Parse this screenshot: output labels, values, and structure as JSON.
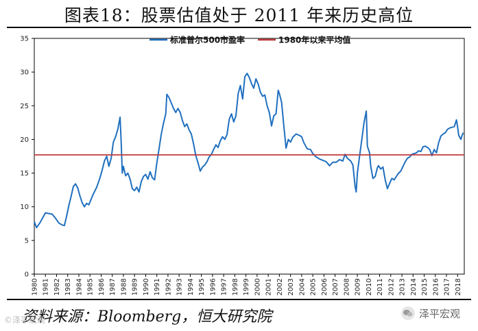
{
  "title": "图表18：股票估值处于 2011 年来历史高位",
  "source": "资料来源：Bloomberg，恒大研究院",
  "watermark": "泽平宏观",
  "watermark_left": "©泽平宏观",
  "colors": {
    "pe": "#1f6fbf",
    "avg": "#c0393b"
  },
  "chart_data": {
    "type": "line",
    "title": "图表18：股票估值处于 2011 年来历史高位",
    "xlabel": "",
    "ylabel": "",
    "xlim": [
      1980,
      2018.6
    ],
    "ylim": [
      0,
      35
    ],
    "yticks": [
      0,
      5,
      10,
      15,
      20,
      25,
      30,
      35
    ],
    "xticks": [
      "1980",
      "1981",
      "1982",
      "1983",
      "1984",
      "1985",
      "1986",
      "1987",
      "1988",
      "1989",
      "1990",
      "1991",
      "1992",
      "1993",
      "1994",
      "1995",
      "1996",
      "1997",
      "1998",
      "1999",
      "2000",
      "2001",
      "2002",
      "2003",
      "2004",
      "2005",
      "2006",
      "2007",
      "2008",
      "2009",
      "2010",
      "2011",
      "2012",
      "2013",
      "2014",
      "2015",
      "2016",
      "2017",
      "2018"
    ],
    "legend_position": "top-right",
    "grid": false,
    "series": [
      {
        "name": "标准普尔500市盈率",
        "color": "#1f6fbf",
        "points": [
          [
            1980.0,
            7.8
          ],
          [
            1980.2,
            6.9
          ],
          [
            1980.5,
            7.6
          ],
          [
            1980.8,
            8.5
          ],
          [
            1981.0,
            9.1
          ],
          [
            1981.3,
            9.0
          ],
          [
            1981.6,
            8.9
          ],
          [
            1981.9,
            8.3
          ],
          [
            1982.2,
            7.6
          ],
          [
            1982.5,
            7.3
          ],
          [
            1982.7,
            7.2
          ],
          [
            1982.9,
            8.6
          ],
          [
            1983.1,
            10.2
          ],
          [
            1983.3,
            11.5
          ],
          [
            1983.5,
            13.0
          ],
          [
            1983.7,
            13.4
          ],
          [
            1983.9,
            12.8
          ],
          [
            1984.1,
            11.6
          ],
          [
            1984.3,
            10.6
          ],
          [
            1984.5,
            10.0
          ],
          [
            1984.7,
            10.5
          ],
          [
            1984.9,
            10.3
          ],
          [
            1985.1,
            11.1
          ],
          [
            1985.3,
            11.9
          ],
          [
            1985.6,
            12.9
          ],
          [
            1985.9,
            14.3
          ],
          [
            1986.1,
            15.5
          ],
          [
            1986.3,
            16.8
          ],
          [
            1986.5,
            17.5
          ],
          [
            1986.7,
            16.0
          ],
          [
            1986.9,
            17.2
          ],
          [
            1987.1,
            19.6
          ],
          [
            1987.3,
            20.4
          ],
          [
            1987.5,
            21.5
          ],
          [
            1987.7,
            23.3
          ],
          [
            1987.8,
            19.6
          ],
          [
            1987.9,
            15.0
          ],
          [
            1988.0,
            16.0
          ],
          [
            1988.2,
            14.6
          ],
          [
            1988.4,
            15.0
          ],
          [
            1988.6,
            14.1
          ],
          [
            1988.8,
            12.7
          ],
          [
            1989.0,
            12.4
          ],
          [
            1989.2,
            12.9
          ],
          [
            1989.4,
            12.2
          ],
          [
            1989.6,
            13.7
          ],
          [
            1989.8,
            14.5
          ],
          [
            1990.0,
            14.8
          ],
          [
            1990.2,
            14.1
          ],
          [
            1990.4,
            15.2
          ],
          [
            1990.6,
            14.3
          ],
          [
            1990.8,
            14.0
          ],
          [
            1991.0,
            16.5
          ],
          [
            1991.2,
            18.6
          ],
          [
            1991.4,
            20.8
          ],
          [
            1991.6,
            22.4
          ],
          [
            1991.8,
            23.8
          ],
          [
            1991.9,
            26.7
          ],
          [
            1992.1,
            26.2
          ],
          [
            1992.3,
            25.4
          ],
          [
            1992.5,
            24.6
          ],
          [
            1992.7,
            24.0
          ],
          [
            1992.9,
            24.6
          ],
          [
            1993.1,
            24.0
          ],
          [
            1993.3,
            22.8
          ],
          [
            1993.5,
            21.9
          ],
          [
            1993.7,
            22.3
          ],
          [
            1993.9,
            21.4
          ],
          [
            1994.1,
            20.8
          ],
          [
            1994.3,
            19.3
          ],
          [
            1994.5,
            17.6
          ],
          [
            1994.7,
            16.5
          ],
          [
            1994.9,
            15.3
          ],
          [
            1995.1,
            15.9
          ],
          [
            1995.3,
            16.2
          ],
          [
            1995.5,
            16.7
          ],
          [
            1995.7,
            17.4
          ],
          [
            1995.9,
            17.8
          ],
          [
            1996.1,
            18.5
          ],
          [
            1996.3,
            19.2
          ],
          [
            1996.5,
            18.8
          ],
          [
            1996.7,
            19.8
          ],
          [
            1996.9,
            20.4
          ],
          [
            1997.1,
            20.0
          ],
          [
            1997.3,
            20.7
          ],
          [
            1997.5,
            23.0
          ],
          [
            1997.7,
            23.8
          ],
          [
            1997.9,
            22.6
          ],
          [
            1998.1,
            23.5
          ],
          [
            1998.3,
            26.8
          ],
          [
            1998.5,
            28.0
          ],
          [
            1998.7,
            26.0
          ],
          [
            1998.9,
            29.3
          ],
          [
            1999.1,
            29.8
          ],
          [
            1999.3,
            29.2
          ],
          [
            1999.5,
            28.3
          ],
          [
            1999.7,
            27.6
          ],
          [
            1999.9,
            29.0
          ],
          [
            2000.1,
            28.2
          ],
          [
            2000.3,
            27.0
          ],
          [
            2000.5,
            26.4
          ],
          [
            2000.7,
            26.6
          ],
          [
            2000.9,
            25.0
          ],
          [
            2001.1,
            24.0
          ],
          [
            2001.3,
            22.0
          ],
          [
            2001.5,
            23.5
          ],
          [
            2001.7,
            23.8
          ],
          [
            2001.9,
            27.3
          ],
          [
            2002.0,
            26.8
          ],
          [
            2002.2,
            25.5
          ],
          [
            2002.4,
            22.0
          ],
          [
            2002.6,
            18.7
          ],
          [
            2002.8,
            20.0
          ],
          [
            2003.0,
            19.6
          ],
          [
            2003.2,
            20.3
          ],
          [
            2003.5,
            20.8
          ],
          [
            2003.8,
            20.6
          ],
          [
            2004.0,
            20.4
          ],
          [
            2004.2,
            19.5
          ],
          [
            2004.5,
            18.6
          ],
          [
            2004.8,
            18.5
          ],
          [
            2005.0,
            17.9
          ],
          [
            2005.3,
            17.4
          ],
          [
            2005.6,
            17.1
          ],
          [
            2005.9,
            16.9
          ],
          [
            2006.2,
            16.7
          ],
          [
            2006.5,
            16.1
          ],
          [
            2006.8,
            16.6
          ],
          [
            2007.1,
            16.6
          ],
          [
            2007.4,
            17.0
          ],
          [
            2007.7,
            16.8
          ],
          [
            2007.9,
            17.8
          ],
          [
            2008.1,
            17.2
          ],
          [
            2008.4,
            16.8
          ],
          [
            2008.6,
            16.2
          ],
          [
            2008.8,
            13.0
          ],
          [
            2008.9,
            12.2
          ],
          [
            2009.0,
            15.0
          ],
          [
            2009.2,
            17.5
          ],
          [
            2009.4,
            20.0
          ],
          [
            2009.6,
            22.5
          ],
          [
            2009.8,
            24.2
          ],
          [
            2009.9,
            19.0
          ],
          [
            2010.1,
            18.0
          ],
          [
            2010.2,
            16.0
          ],
          [
            2010.4,
            14.2
          ],
          [
            2010.6,
            14.5
          ],
          [
            2010.8,
            15.8
          ],
          [
            2010.9,
            16.1
          ],
          [
            2011.1,
            15.6
          ],
          [
            2011.3,
            15.9
          ],
          [
            2011.5,
            14.0
          ],
          [
            2011.7,
            12.7
          ],
          [
            2011.9,
            13.5
          ],
          [
            2012.1,
            14.2
          ],
          [
            2012.3,
            14.0
          ],
          [
            2012.5,
            14.5
          ],
          [
            2012.7,
            15.0
          ],
          [
            2012.9,
            15.3
          ],
          [
            2013.1,
            16.0
          ],
          [
            2013.3,
            16.7
          ],
          [
            2013.5,
            17.2
          ],
          [
            2013.7,
            17.4
          ],
          [
            2013.9,
            17.8
          ],
          [
            2014.1,
            17.9
          ],
          [
            2014.3,
            18.0
          ],
          [
            2014.5,
            18.3
          ],
          [
            2014.7,
            18.2
          ],
          [
            2014.9,
            18.9
          ],
          [
            2015.1,
            19.0
          ],
          [
            2015.3,
            18.8
          ],
          [
            2015.5,
            18.5
          ],
          [
            2015.7,
            17.6
          ],
          [
            2015.9,
            18.5
          ],
          [
            2016.1,
            18.0
          ],
          [
            2016.3,
            19.5
          ],
          [
            2016.5,
            20.5
          ],
          [
            2016.7,
            20.8
          ],
          [
            2016.9,
            21.0
          ],
          [
            2017.1,
            21.5
          ],
          [
            2017.3,
            21.7
          ],
          [
            2017.5,
            21.8
          ],
          [
            2017.7,
            21.9
          ],
          [
            2017.9,
            22.9
          ],
          [
            2018.0,
            21.8
          ],
          [
            2018.1,
            20.6
          ],
          [
            2018.3,
            20.0
          ],
          [
            2018.4,
            20.6
          ],
          [
            2018.5,
            21.0
          ]
        ]
      },
      {
        "name": "1980年以来平均值",
        "color": "#c0393b",
        "points": [
          [
            1980.0,
            17.7
          ],
          [
            2018.6,
            17.7
          ]
        ]
      }
    ]
  }
}
